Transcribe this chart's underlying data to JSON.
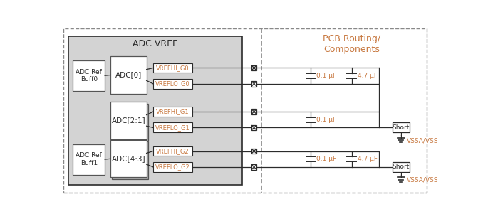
{
  "bg_color": "#ffffff",
  "gray_color": "#d3d3d3",
  "white": "#ffffff",
  "black": "#2b2b2b",
  "orange": "#c87941",
  "dashed_color": "#888888",
  "adc_vref_label": "ADC VREF",
  "pcb_label": "PCB Routing/\nComponents",
  "buff0_label": "ADC Ref\nBuff0",
  "buff1_label": "ADC Ref\nBuff1",
  "adc0_label": "ADC[0]",
  "adc21_label": "ADC[2:1]",
  "adc43_label": "ADC[4:3]",
  "pin_labels": [
    "VREFHI_G0",
    "VREFLO_G0",
    "VREFHI_G1",
    "VREFLO_G1",
    "VREFHI_G2",
    "VREFLO_G2"
  ],
  "cap_labels_01": [
    "0.1 μF",
    "4.7 μF"
  ],
  "cap_label_1": "0.1 μF",
  "cap_labels_23": [
    "0.1 μF",
    "4.7 μF"
  ],
  "short_label": "Short",
  "vssa_label": "VSSA/VSS"
}
